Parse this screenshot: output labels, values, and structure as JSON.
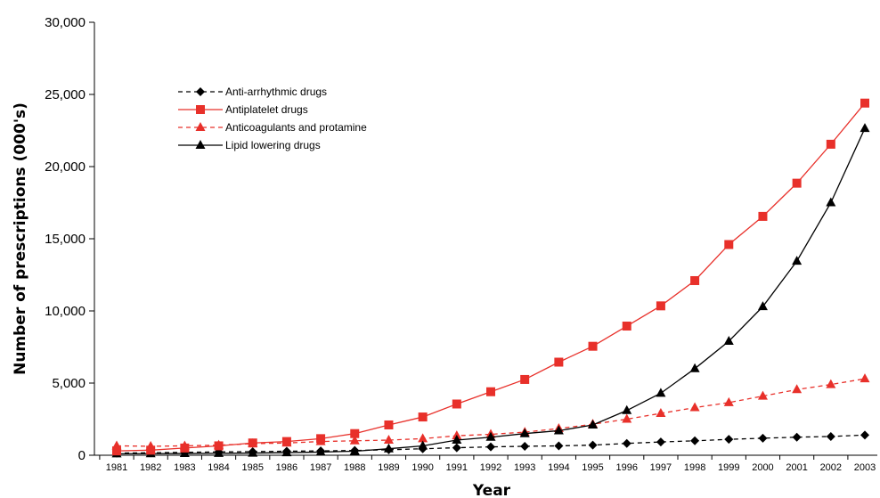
{
  "chart_data": {
    "type": "line",
    "title": "",
    "xlabel": "Year",
    "ylabel": "Number of prescriptions (000's)",
    "x": [
      "1981",
      "1982",
      "1983",
      "1984",
      "1985",
      "1986",
      "1987",
      "1988",
      "1989",
      "1990",
      "1991",
      "1992",
      "1993",
      "1994",
      "1995",
      "1996",
      "1997",
      "1998",
      "1999",
      "2000",
      "2001",
      "2002",
      "2003"
    ],
    "ylim": [
      0,
      30000
    ],
    "yticks": [
      0,
      5000,
      10000,
      15000,
      20000,
      25000,
      30000
    ],
    "ytick_labels": [
      "0",
      "5,000",
      "10,000",
      "15,000",
      "20,000",
      "25,000",
      "30,000"
    ],
    "grid": false,
    "legend_position": "upper-left",
    "series": [
      {
        "name": "Anti-arrhythmic drugs",
        "color": "#000000",
        "line_style": "dashed",
        "marker": "diamond",
        "values": [
          150,
          170,
          200,
          230,
          250,
          280,
          300,
          330,
          380,
          450,
          520,
          580,
          620,
          650,
          700,
          820,
          920,
          1000,
          1100,
          1180,
          1250,
          1300,
          1400
        ]
      },
      {
        "name": "Antiplatelet drugs",
        "color": "#e8302a",
        "line_style": "solid",
        "marker": "square",
        "values": [
          300,
          350,
          500,
          650,
          850,
          950,
          1150,
          1500,
          2100,
          2650,
          3550,
          4400,
          5250,
          6450,
          7550,
          8950,
          10350,
          12100,
          14600,
          16550,
          18850,
          21550,
          24400
        ]
      },
      {
        "name": "Anticoagulants and protamine",
        "color": "#e8302a",
        "line_style": "dashed",
        "marker": "triangle",
        "values": [
          650,
          620,
          650,
          700,
          800,
          850,
          950,
          1000,
          1050,
          1150,
          1350,
          1450,
          1600,
          1850,
          2150,
          2500,
          2900,
          3300,
          3650,
          4100,
          4550,
          4900,
          5300
        ]
      },
      {
        "name": "Lipid lowering drugs",
        "color": "#000000",
        "line_style": "solid",
        "marker": "triangle",
        "values": [
          100,
          110,
          120,
          130,
          150,
          180,
          220,
          280,
          450,
          650,
          1050,
          1250,
          1500,
          1700,
          2100,
          3100,
          4300,
          6000,
          7900,
          10300,
          13450,
          17500,
          22650
        ]
      }
    ]
  }
}
